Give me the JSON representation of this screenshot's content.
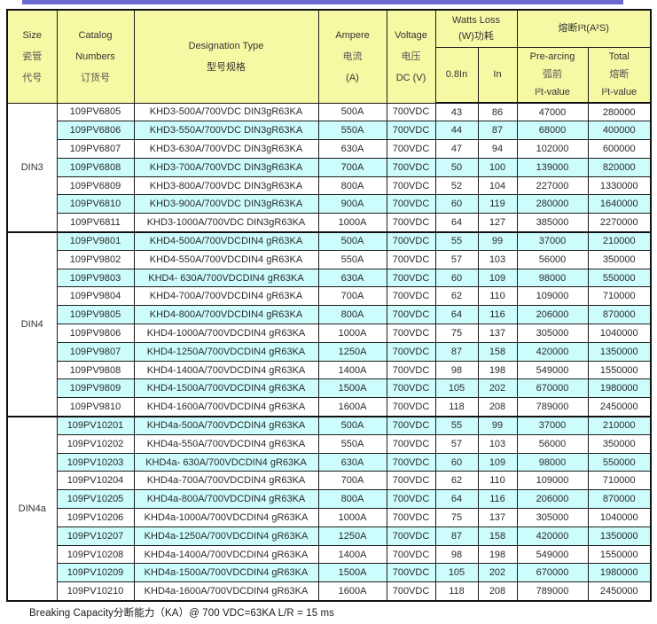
{
  "colors": {
    "top_bar": "#6969cf",
    "header_bg": "#f6f9a3",
    "row_stripe": "#ccfcfc",
    "border": "#111111"
  },
  "table": {
    "header": {
      "size": {
        "l1": "Size",
        "l2": "瓷管",
        "l3": "代号"
      },
      "catalog": {
        "l1": "Catalog",
        "l2": "Numbers",
        "l3": "订货号"
      },
      "designation": {
        "l1": "Designation Type",
        "l2": "型号规格"
      },
      "ampere": {
        "l1": "Ampere",
        "l2": "电流",
        "l3": "(A)"
      },
      "voltage": {
        "l1": "Voltage",
        "l2": "电压",
        "l3": "DC (V)"
      },
      "watts": {
        "l1": "Watts Loss",
        "l2": "(W)功耗"
      },
      "watts_08in": "0.8In",
      "watts_in": "In",
      "i2t": "熔断I²t(A²S)",
      "prearcing": {
        "l1": "Pre-arcing",
        "l2": "弧前",
        "l3": "I²t-value"
      },
      "total": {
        "l1": "Total",
        "l2": "熔断",
        "l3": "I²t-value"
      }
    },
    "groups": [
      {
        "size": "DIN3",
        "rows": [
          [
            "109PV6805",
            "KHD3-500A/700VDC DIN3gR63KA",
            "500A",
            "700VDC",
            "43",
            "86",
            "47000",
            "280000"
          ],
          [
            "109PV6806",
            "KHD3-550A/700VDC DIN3gR63KA",
            "550A",
            "700VDC",
            "44",
            "87",
            "68000",
            "400000"
          ],
          [
            "109PV6807",
            "KHD3-630A/700VDC DIN3gR63KA",
            "630A",
            "700VDC",
            "47",
            "94",
            "102000",
            "600000"
          ],
          [
            "109PV6808",
            "KHD3-700A/700VDC DIN3gR63KA",
            "700A",
            "700VDC",
            "50",
            "100",
            "139000",
            "820000"
          ],
          [
            "109PV6809",
            "KHD3-800A/700VDC DIN3gR63KA",
            "800A",
            "700VDC",
            "52",
            "104",
            "227000",
            "1330000"
          ],
          [
            "109PV6810",
            "KHD3-900A/700VDC DIN3gR63KA",
            "900A",
            "700VDC",
            "60",
            "119",
            "280000",
            "1640000"
          ],
          [
            "109PV6811",
            "KHD3-1000A/700VDC DIN3gR63KA",
            "1000A",
            "700VDC",
            "64",
            "127",
            "385000",
            "2270000"
          ]
        ]
      },
      {
        "size": "DIN4",
        "rows": [
          [
            "109PV9801",
            "KHD4-500A/700VDCDIN4 gR63KA",
            "500A",
            "700VDC",
            "55",
            "99",
            "37000",
            "210000"
          ],
          [
            "109PV9802",
            "KHD4-550A/700VDCDIN4 gR63KA",
            "550A",
            "700VDC",
            "57",
            "103",
            "56000",
            "350000"
          ],
          [
            "109PV9803",
            "KHD4- 630A/700VDCDIN4 gR63KA",
            "630A",
            "700VDC",
            "60",
            "109",
            "98000",
            "550000"
          ],
          [
            "109PV9804",
            "KHD4-700A/700VDCDIN4 gR63KA",
            "700A",
            "700VDC",
            "62",
            "110",
            "109000",
            "710000"
          ],
          [
            "109PV9805",
            "KHD4-800A/700VDCDIN4 gR63KA",
            "800A",
            "700VDC",
            "64",
            "116",
            "206000",
            "870000"
          ],
          [
            "109PV9806",
            "KHD4-1000A/700VDCDIN4 gR63KA",
            "1000A",
            "700VDC",
            "75",
            "137",
            "305000",
            "1040000"
          ],
          [
            "109PV9807",
            "KHD4-1250A/700VDCDIN4 gR63KA",
            "1250A",
            "700VDC",
            "87",
            "158",
            "420000",
            "1350000"
          ],
          [
            "109PV9808",
            "KHD4-1400A/700VDCDIN4 gR63KA",
            "1400A",
            "700VDC",
            "98",
            "198",
            "549000",
            "1550000"
          ],
          [
            "109PV9809",
            "KHD4-1500A/700VDCDIN4 gR63KA",
            "1500A",
            "700VDC",
            "105",
            "202",
            "670000",
            "1980000"
          ],
          [
            "109PV9810",
            "KHD4-1600A/700VDCDIN4 gR63KA",
            "1600A",
            "700VDC",
            "118",
            "208",
            "789000",
            "2450000"
          ]
        ]
      },
      {
        "size": "DIN4a",
        "rows": [
          [
            "109PV10201",
            "KHD4a-500A/700VDCDIN4 gR63KA",
            "500A",
            "700VDC",
            "55",
            "99",
            "37000",
            "210000"
          ],
          [
            "109PV10202",
            "KHD4a-550A/700VDCDIN4 gR63KA",
            "550A",
            "700VDC",
            "57",
            "103",
            "56000",
            "350000"
          ],
          [
            "109PV10203",
            "KHD4a- 630A/700VDCDIN4 gR63KA",
            "630A",
            "700VDC",
            "60",
            "109",
            "98000",
            "550000"
          ],
          [
            "109PV10204",
            "KHD4a-700A/700VDCDIN4 gR63KA",
            "700A",
            "700VDC",
            "62",
            "110",
            "109000",
            "710000"
          ],
          [
            "109PV10205",
            "KHD4a-800A/700VDCDIN4 gR63KA",
            "800A",
            "700VDC",
            "64",
            "116",
            "206000",
            "870000"
          ],
          [
            "109PV10206",
            "KHD4a-1000A/700VDCDIN4 gR63KA",
            "1000A",
            "700VDC",
            "75",
            "137",
            "305000",
            "1040000"
          ],
          [
            "109PV10207",
            "KHD4a-1250A/700VDCDIN4 gR63KA",
            "1250A",
            "700VDC",
            "87",
            "158",
            "420000",
            "1350000"
          ],
          [
            "109PV10208",
            "KHD4a-1400A/700VDCDIN4 gR63KA",
            "1400A",
            "700VDC",
            "98",
            "198",
            "549000",
            "1550000"
          ],
          [
            "109PV10209",
            "KHD4a-1500A/700VDCDIN4 gR63KA",
            "1500A",
            "700VDC",
            "105",
            "202",
            "670000",
            "1980000"
          ],
          [
            "109PV10210",
            "KHD4a-1600A/700VDCDIN4 gR63KA",
            "1600A",
            "700VDC",
            "118",
            "208",
            "789000",
            "2450000"
          ]
        ]
      }
    ]
  },
  "footer": {
    "note": "Breaking Capacity分断能力（KA）@ 700 VDC=63KA   L/R = 15 ms"
  }
}
